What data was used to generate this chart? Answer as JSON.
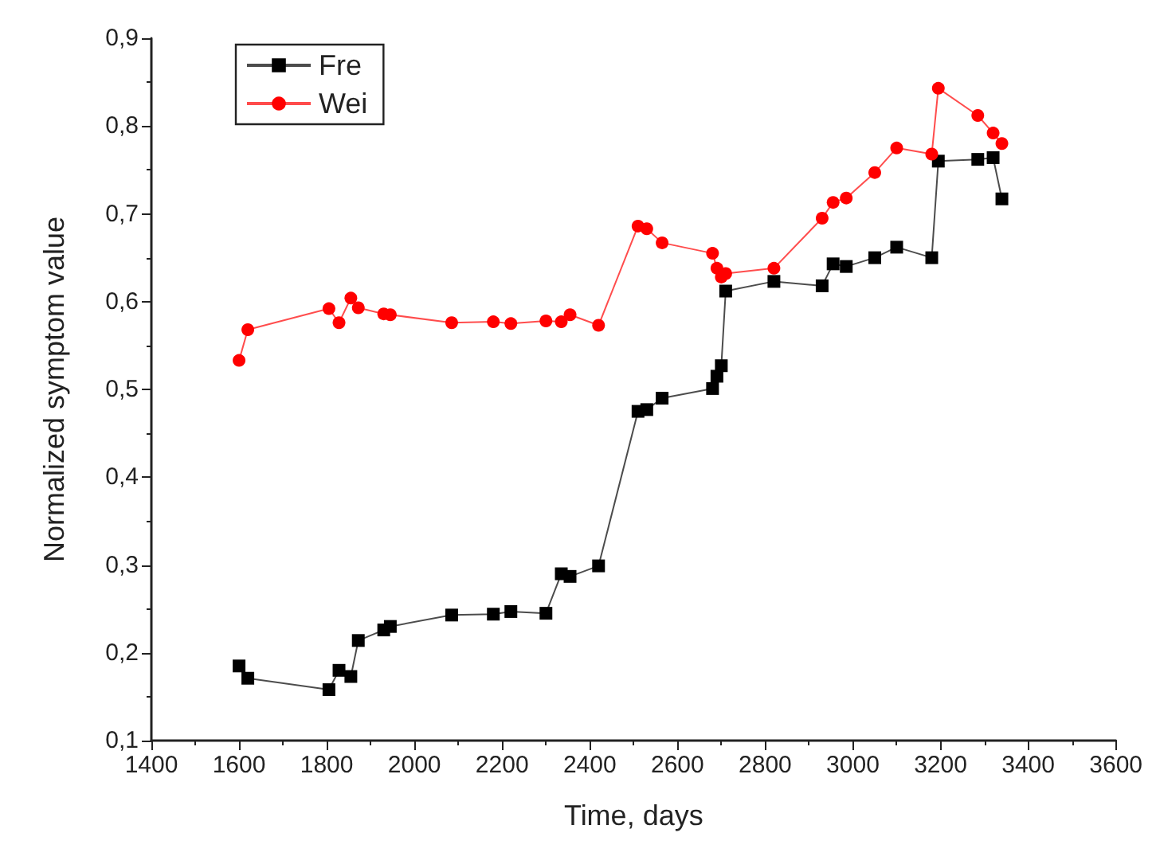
{
  "chart_data": {
    "type": "line",
    "xlabel": "Time, days",
    "ylabel": "Normalized symptom value",
    "legend": "top left",
    "grid": false,
    "xlim": [
      1400,
      3600
    ],
    "xticks": [
      1400,
      1600,
      1800,
      2000,
      2200,
      2400,
      2600,
      2800,
      3000,
      3200,
      3400,
      3600
    ],
    "ylim": [
      0.1,
      0.9
    ],
    "yticks": [
      {
        "value": 0.1,
        "label": "0,1"
      },
      {
        "value": 0.2,
        "label": "0,2"
      },
      {
        "value": 0.3,
        "label": "0,3"
      },
      {
        "value": 0.4,
        "label": "0,4"
      },
      {
        "value": 0.5,
        "label": "0,5"
      },
      {
        "value": 0.6,
        "label": "0,6"
      },
      {
        "value": 0.7,
        "label": "0,7"
      },
      {
        "value": 0.8,
        "label": "0,8"
      },
      {
        "value": 0.9,
        "label": "0,9"
      }
    ],
    "x": [
      1600,
      1620,
      1805,
      1828,
      1855,
      1872,
      1930,
      1945,
      2085,
      2180,
      2220,
      2300,
      2335,
      2355,
      2420,
      2510,
      2530,
      2565,
      2680,
      2690,
      2700,
      2710,
      2820,
      2930,
      2955,
      2985,
      3050,
      3100,
      3180,
      3195,
      3285,
      3320,
      3340
    ],
    "series": [
      {
        "name": "Fre",
        "color": "#000000",
        "marker": "square",
        "values": [
          0.185,
          0.171,
          0.158,
          0.18,
          0.173,
          0.214,
          0.226,
          0.23,
          0.243,
          0.244,
          0.247,
          0.245,
          0.29,
          0.287,
          0.299,
          0.475,
          0.477,
          0.49,
          0.501,
          0.515,
          0.527,
          0.612,
          0.623,
          0.618,
          0.643,
          0.64,
          0.65,
          0.662,
          0.65,
          0.76,
          0.762,
          0.764,
          0.717
        ]
      },
      {
        "name": "Wei",
        "color": "#ff0000",
        "marker": "circle",
        "values": [
          0.533,
          0.568,
          0.592,
          0.576,
          0.604,
          0.593,
          0.586,
          0.585,
          0.576,
          0.577,
          0.575,
          0.578,
          0.577,
          0.585,
          0.573,
          0.686,
          0.683,
          0.667,
          0.655,
          0.638,
          0.628,
          0.632,
          0.638,
          0.695,
          0.713,
          0.718,
          0.747,
          0.775,
          0.768,
          0.843,
          0.812,
          0.792,
          0.78
        ]
      }
    ]
  }
}
